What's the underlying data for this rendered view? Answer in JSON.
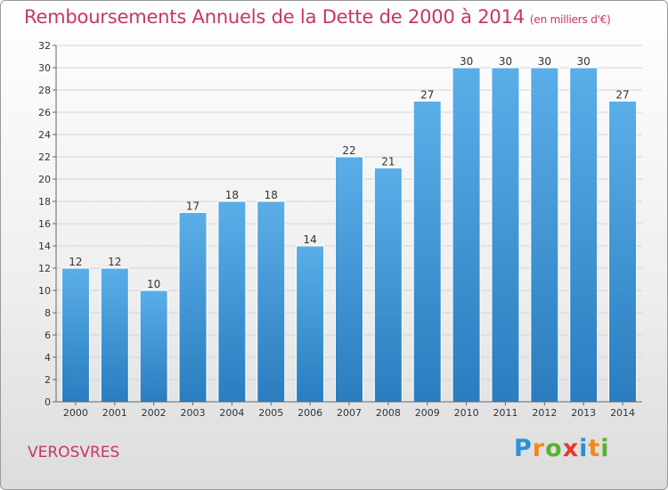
{
  "title": "Remboursements Annuels de la Dette de 2000 à 2014",
  "unit": "(en milliers d'€)",
  "commune": "VEROSVRES",
  "logo": {
    "letters": [
      "P",
      "r",
      "o",
      "x",
      "i",
      "t",
      "i"
    ],
    "colors": [
      "#2c8fd8",
      "#f08a1c",
      "#5bb130",
      "#e43a2d",
      "#2c8fd8",
      "#f08a1c",
      "#5bb130"
    ]
  },
  "colors": {
    "bar_top": "#5aaee8",
    "bar_bottom": "#2a7dbf",
    "title": "#c8365f"
  },
  "chart_data": {
    "type": "bar",
    "categories": [
      "2000",
      "2001",
      "2002",
      "2003",
      "2004",
      "2005",
      "2006",
      "2007",
      "2008",
      "2009",
      "2010",
      "2011",
      "2012",
      "2013",
      "2014"
    ],
    "values": [
      12,
      12,
      10,
      17,
      18,
      18,
      14,
      22,
      21,
      27,
      30,
      30,
      30,
      30,
      27
    ],
    "title": "Remboursements Annuels de la Dette de 2000 à 2014",
    "xlabel": "",
    "ylabel": "",
    "ylim": [
      0,
      32
    ],
    "yticks": [
      0,
      2,
      4,
      6,
      8,
      10,
      12,
      14,
      16,
      18,
      20,
      22,
      24,
      26,
      28,
      30,
      32
    ],
    "grid": true,
    "legend": "none"
  }
}
